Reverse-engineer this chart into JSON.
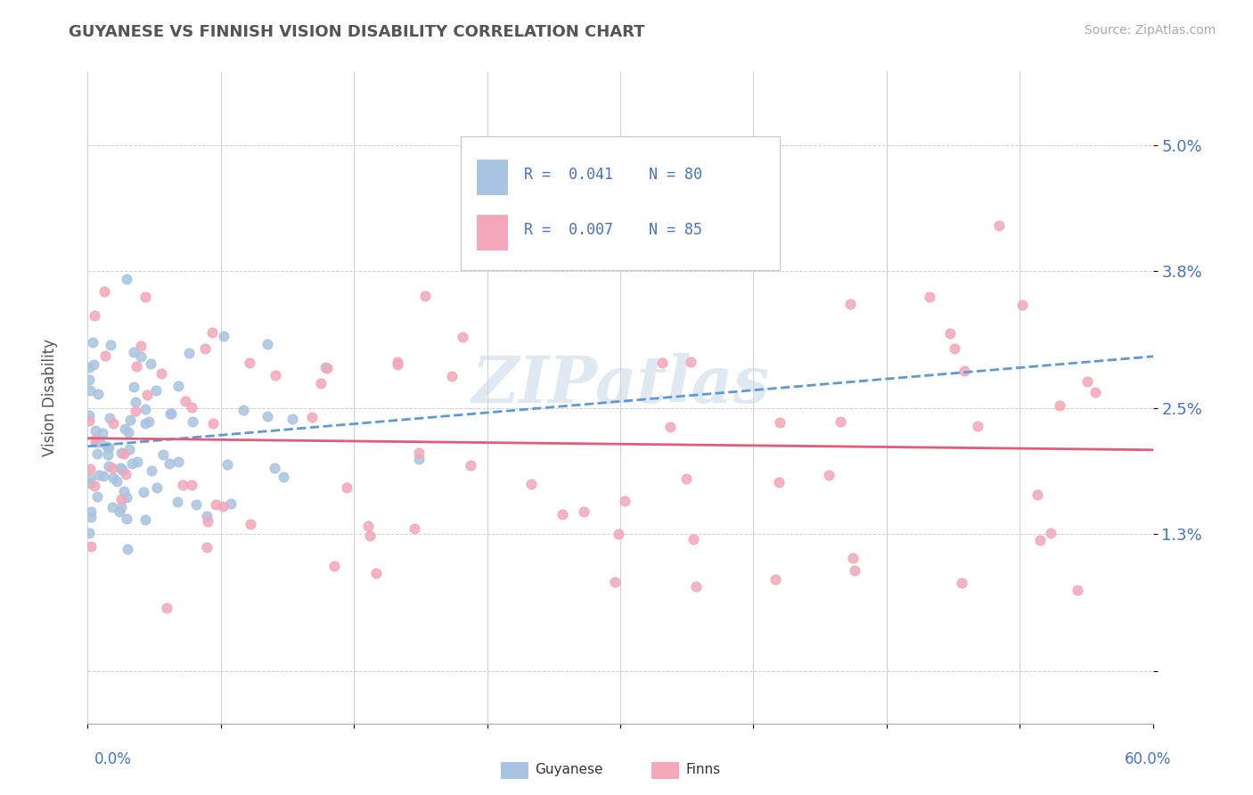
{
  "title": "GUYANESE VS FINNISH VISION DISABILITY CORRELATION CHART",
  "source": "Source: ZipAtlas.com",
  "ylabel": "Vision Disability",
  "xlim": [
    0.0,
    0.6
  ],
  "ylim": [
    -0.005,
    0.057
  ],
  "ytick_vals": [
    0.0,
    0.013,
    0.025,
    0.038,
    0.05
  ],
  "ytick_labels": [
    "",
    "1.3%",
    "2.5%",
    "3.8%",
    "5.0%"
  ],
  "guyanese_color": "#a8c4e0",
  "finns_color": "#f4a7b9",
  "guyanese_line_color": "#5b9bd5",
  "finns_line_color": "#e05c7a",
  "watermark": "ZIPatlas",
  "watermark_color": "#c8d8e8",
  "guyanese_seed": 12,
  "finns_seed": 99
}
